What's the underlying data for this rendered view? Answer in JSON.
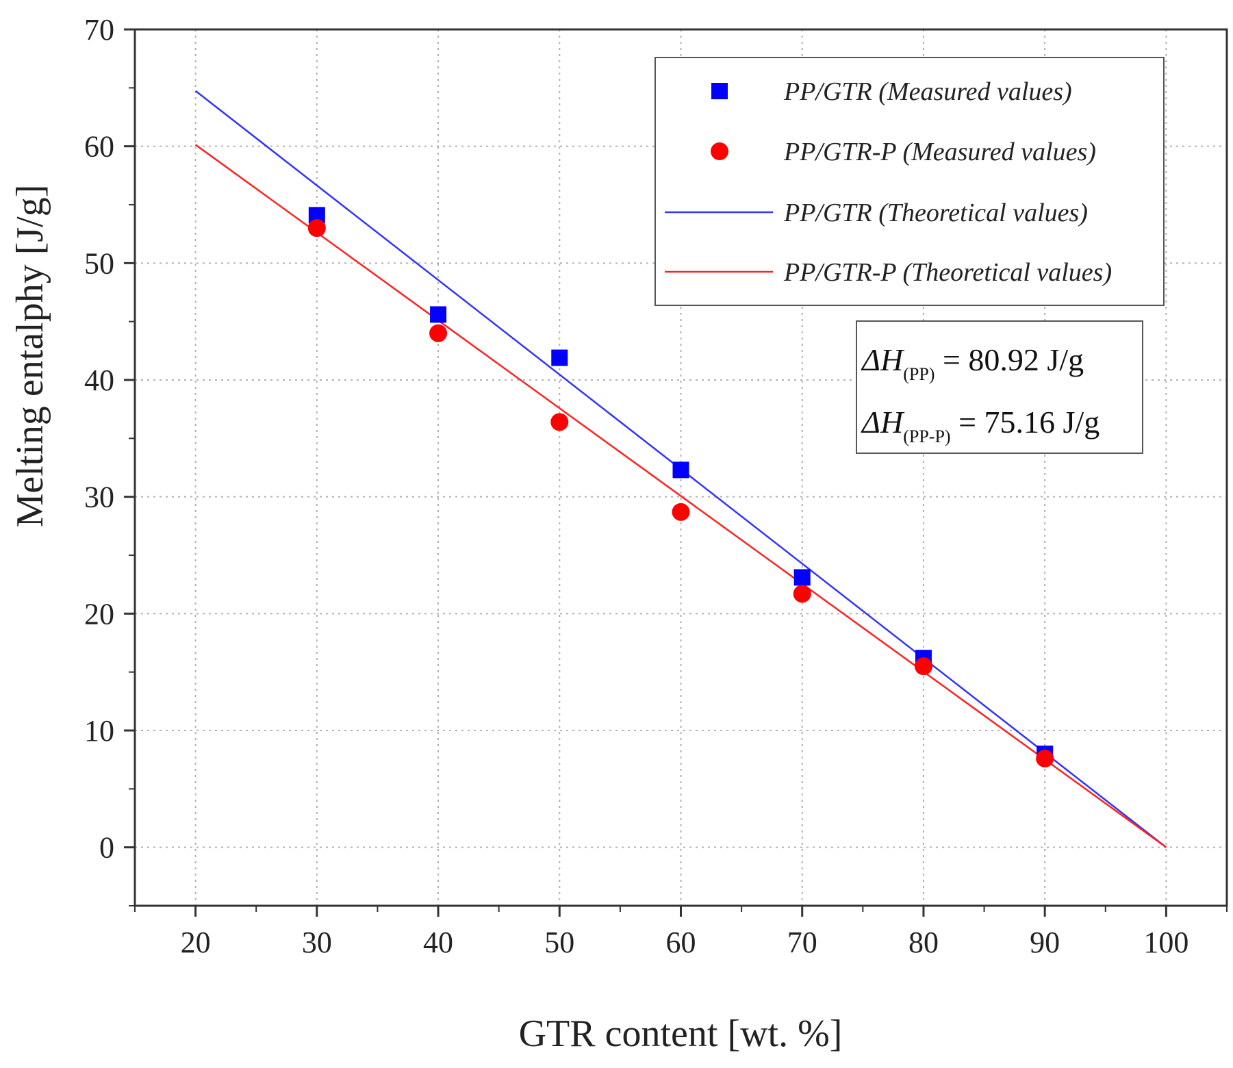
{
  "chart_data": {
    "type": "scatter",
    "title": "",
    "xlabel": "GTR content [wt. %]",
    "ylabel": "Melting entalphy [J/g]",
    "xlim": [
      15,
      105
    ],
    "ylim": [
      -5,
      70
    ],
    "xticks": [
      20,
      30,
      40,
      50,
      60,
      70,
      80,
      90,
      100
    ],
    "yticks": [
      0,
      10,
      20,
      30,
      40,
      50,
      60,
      70
    ],
    "grid": true,
    "legend_position": "top-right",
    "series": [
      {
        "name": "PP/GTR (Measured values)",
        "kind": "scatter",
        "marker": "square",
        "color": "#0000ff",
        "x": [
          30,
          40,
          50,
          60,
          70,
          80,
          90
        ],
        "y": [
          54.1,
          45.6,
          41.9,
          32.3,
          23.1,
          16.2,
          8.0
        ]
      },
      {
        "name": "PP/GTR-P (Measured values)",
        "kind": "scatter",
        "marker": "circle",
        "color": "#ff0000",
        "x": [
          30,
          40,
          50,
          60,
          70,
          80,
          90
        ],
        "y": [
          53.0,
          44.0,
          36.4,
          28.7,
          21.7,
          15.5,
          7.6
        ]
      },
      {
        "name": "PP/GTR (Theoretical values)",
        "kind": "line",
        "color": "#3333ff",
        "x": [
          20,
          100
        ],
        "y": [
          64.74,
          0
        ]
      },
      {
        "name": "PP/GTR-P (Theoretical values)",
        "kind": "line",
        "color": "#ff2222",
        "x": [
          20,
          100
        ],
        "y": [
          60.13,
          0
        ]
      }
    ],
    "annotation": {
      "line1_prefix": "ΔH",
      "line1_sub": "(PP)",
      "line1_value": " = 80.92 J/g",
      "line2_prefix": "ΔH",
      "line2_sub": "(PP-P)",
      "line2_value": " = 75.16 J/g"
    }
  }
}
